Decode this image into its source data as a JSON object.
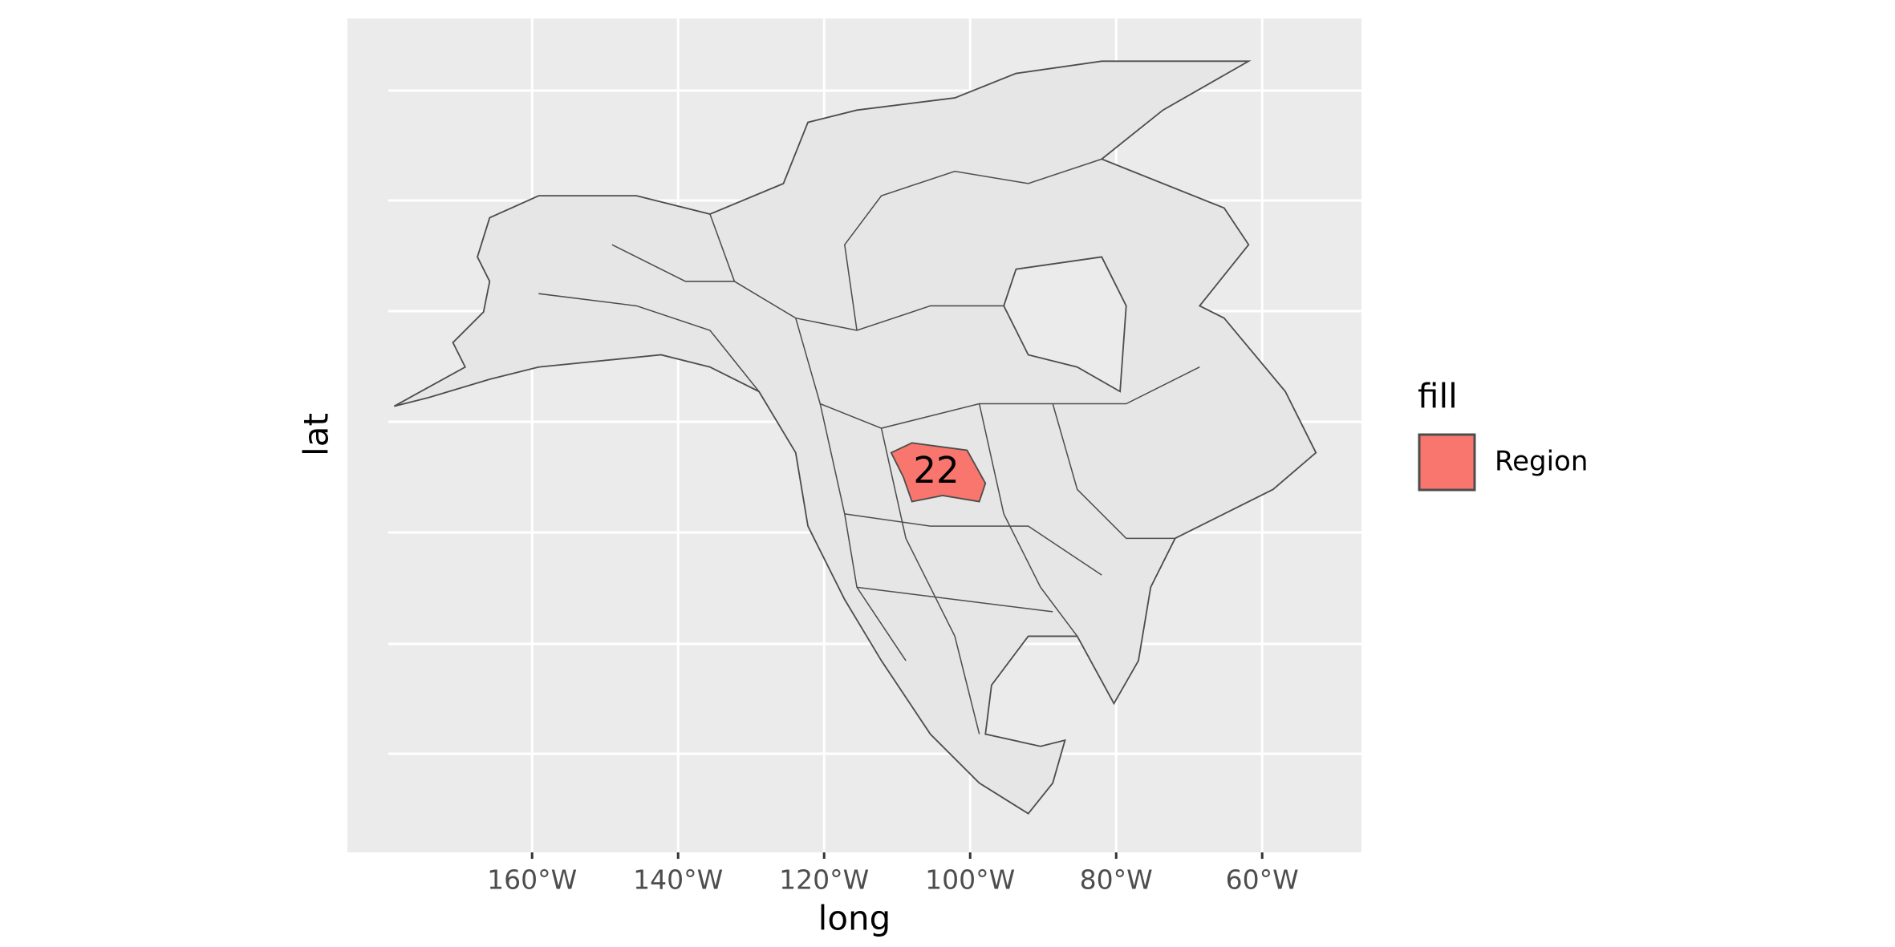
{
  "chart_data": {
    "type": "map",
    "x_label": "long",
    "y_label": "lat",
    "xlim": [
      -185.3,
      -46.4
    ],
    "xticks": [
      {
        "value": -160,
        "label": "160°W"
      },
      {
        "value": -140,
        "label": "140°W"
      },
      {
        "value": -120,
        "label": "120°W"
      },
      {
        "value": -100,
        "label": "100°W"
      },
      {
        "value": -80,
        "label": "80°W"
      },
      {
        "value": -60,
        "label": "60°W"
      }
    ],
    "grid": true,
    "legend_title": "fill",
    "series": [
      {
        "name": "Region",
        "color": "#f8766d"
      }
    ],
    "annotations": [
      "22"
    ]
  }
}
